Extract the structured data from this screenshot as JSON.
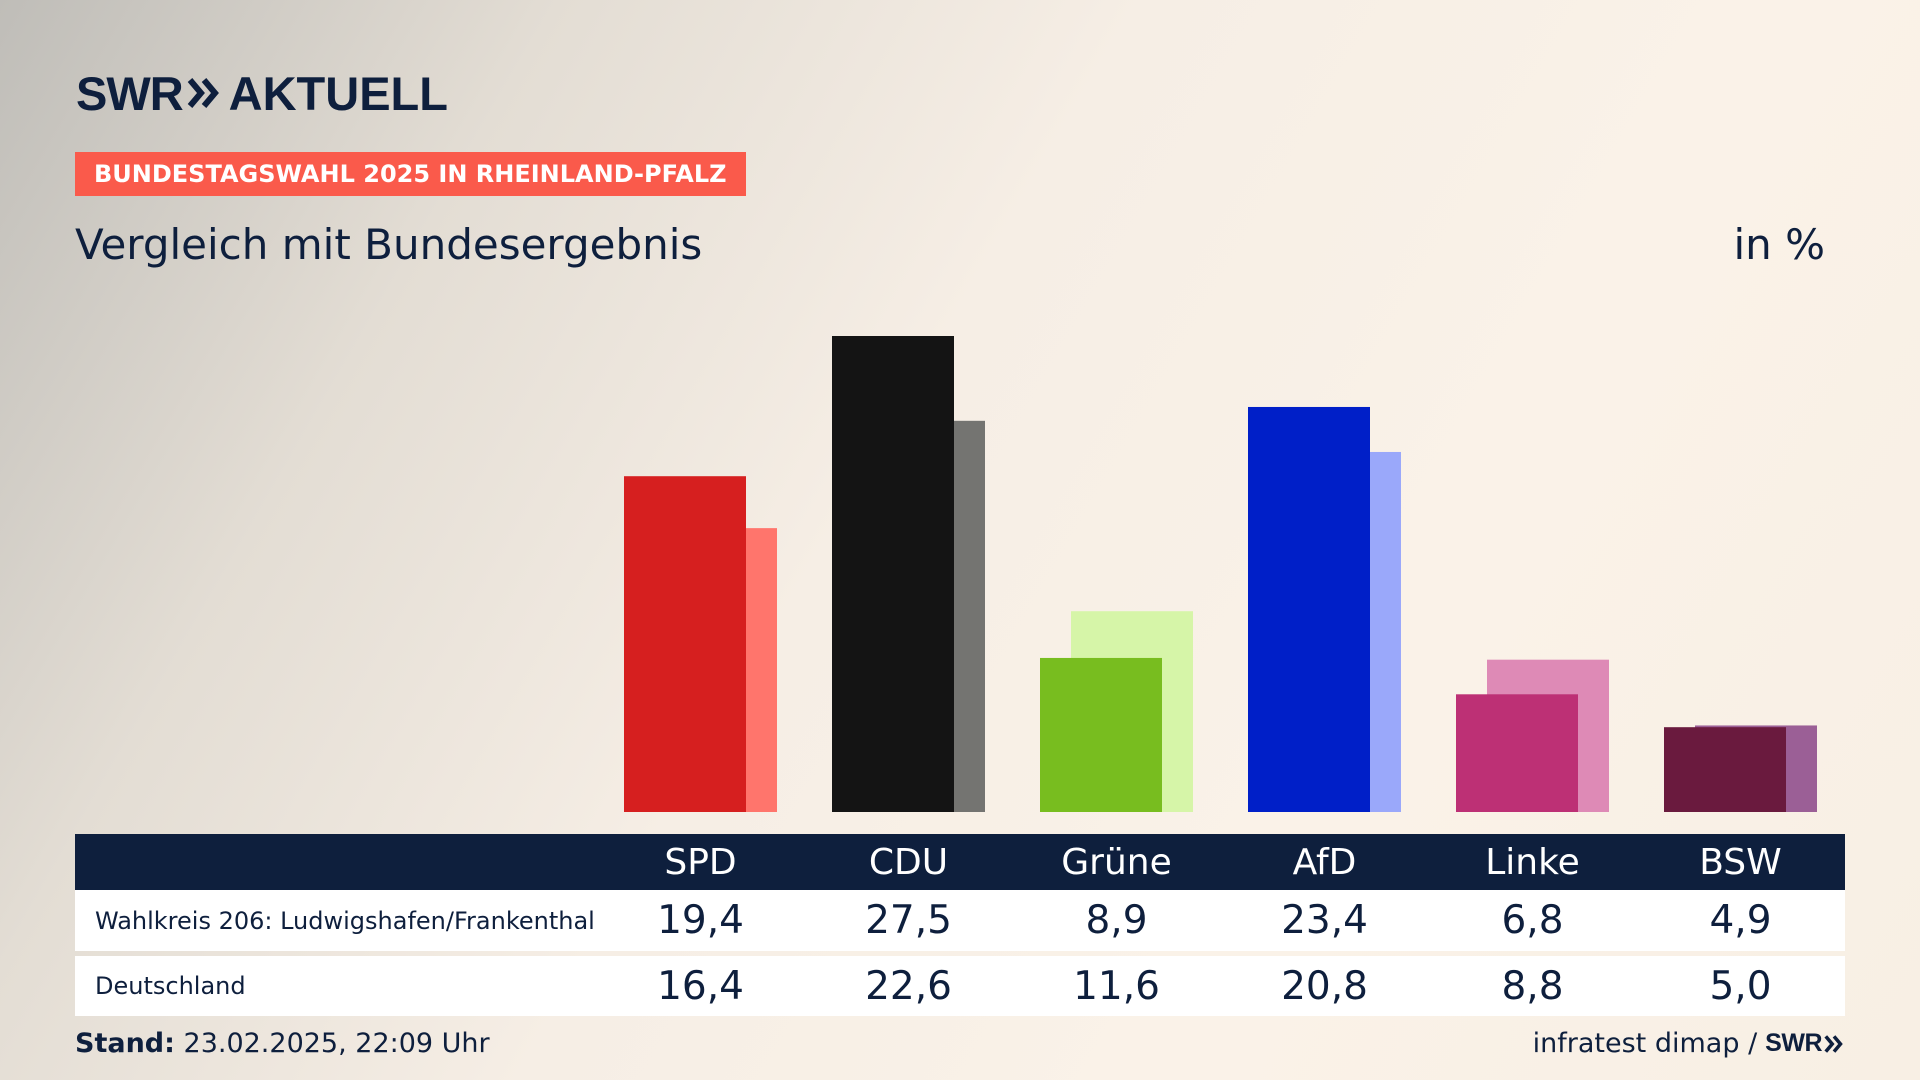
{
  "brand": {
    "logo_main": "SWR",
    "logo_sub": "AKTUELL"
  },
  "badge": "BUNDESTAGSWAHL 2025 IN RHEINLAND-PFALZ",
  "subtitle": "Vergleich mit Bundesergebnis",
  "unit": "in %",
  "chart_data": {
    "type": "bar",
    "categories": [
      "SPD",
      "CDU",
      "Grüne",
      "AfD",
      "Linke",
      "BSW"
    ],
    "series": [
      {
        "name": "Wahlkreis 206: Ludwigshafen/Frankenthal",
        "values": [
          19.4,
          27.5,
          8.9,
          23.4,
          6.8,
          4.9
        ]
      },
      {
        "name": "Deutschland",
        "values": [
          16.4,
          22.6,
          11.6,
          20.8,
          8.8,
          5.0
        ]
      }
    ],
    "value_labels": [
      [
        "19,4",
        "27,5",
        "8,9",
        "23,4",
        "6,8",
        "4,9"
      ],
      [
        "16,4",
        "22,6",
        "11,6",
        "20,8",
        "8,8",
        "5,0"
      ]
    ],
    "colors_primary": [
      "#d61f1f",
      "#141414",
      "#78bd1f",
      "#001fc8",
      "#bd3075",
      "#6a1a3e"
    ],
    "colors_secondary": [
      "#ff756c",
      "#747471",
      "#d6f5a8",
      "#9aa8fa",
      "#de8ab6",
      "#9b5f96"
    ],
    "ylim": [
      0,
      27.5
    ],
    "grid": false
  },
  "footer": {
    "stand_label": "Stand:",
    "stand_value": "23.02.2025, 22:09 Uhr",
    "source": "infratest dimap /",
    "source_logo": "SWR"
  }
}
